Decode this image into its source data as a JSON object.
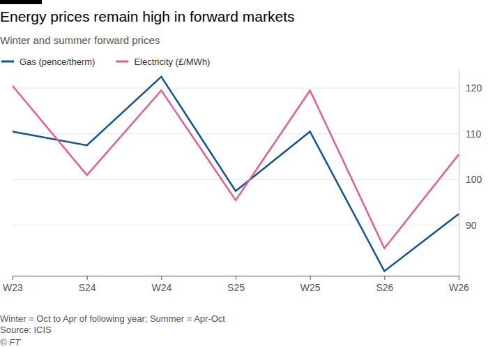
{
  "chart_data": {
    "type": "line",
    "title": "Energy prices remain high in forward markets",
    "subtitle": "Winter and summer forward prices",
    "categories": [
      "W23",
      "S24",
      "W24",
      "S25",
      "W25",
      "S26",
      "W26"
    ],
    "series": [
      {
        "name": "Gas (pence/therm)",
        "color": "#0f5499",
        "values": [
          110.5,
          107.5,
          122.5,
          97.5,
          110.5,
          80,
          92.5
        ]
      },
      {
        "name": "Electricity (£/MWh)",
        "color": "#e95d8c",
        "values": [
          120.5,
          101,
          119.5,
          95.5,
          119.5,
          85,
          105.5
        ]
      }
    ],
    "ylim": [
      79,
      124
    ],
    "yticks": [
      90,
      100,
      110,
      120
    ],
    "grid": true,
    "legend": "top",
    "footnote": "Winter = Oct to Apr of following year; Summer = Apr-Oct",
    "source": "Source: ICIS",
    "credit": "© FT"
  }
}
